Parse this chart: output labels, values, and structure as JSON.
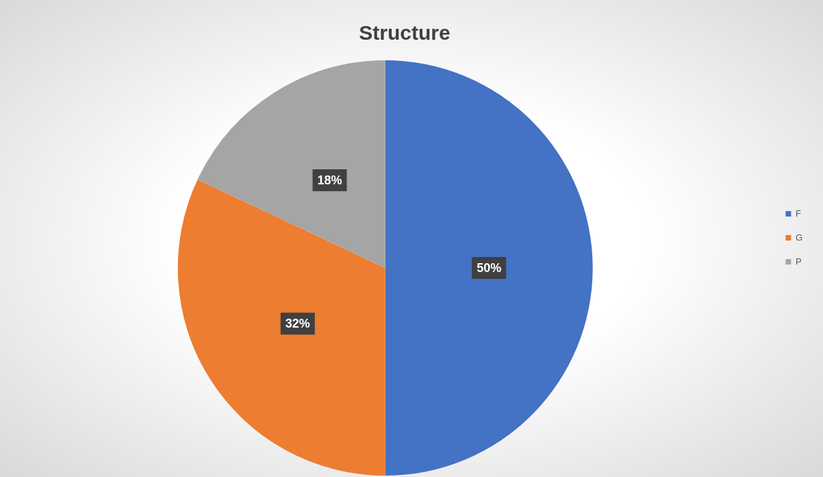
{
  "chart_data": {
    "type": "pie",
    "title": "Structure",
    "categories": [
      "F",
      "G",
      "P"
    ],
    "values": [
      50,
      32,
      18
    ],
    "colors": [
      "#4472c4",
      "#ed7d31",
      "#a5a5a5"
    ],
    "value_labels": [
      "50%",
      "32%",
      "18%"
    ],
    "legend": "right"
  }
}
